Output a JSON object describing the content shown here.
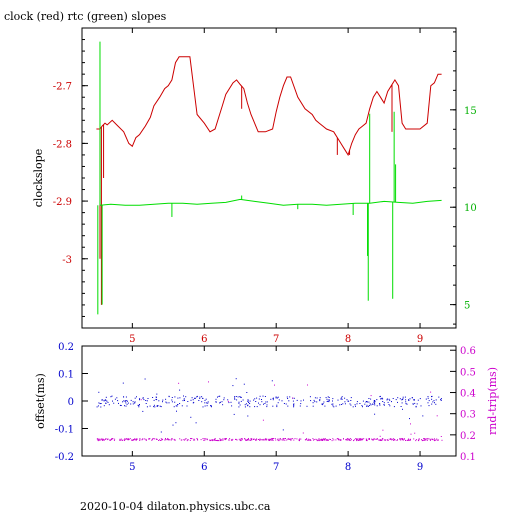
{
  "chart_data": [
    {
      "type": "line",
      "title": "clock (red) rtc (green) slopes",
      "xlabel": "",
      "ylabel": "clockslope",
      "y2label": "",
      "xlim": [
        4.3,
        9.5
      ],
      "ylim": [
        -3.12,
        -2.6
      ],
      "y2lim": [
        3.8,
        19.2
      ],
      "x_ticks": [
        "5",
        "6",
        "7",
        "8",
        "9"
      ],
      "y_ticks": [
        "-2.7",
        "-2.8",
        "-2.9",
        "-3"
      ],
      "y2_ticks": [
        "15",
        "10",
        "5"
      ],
      "grid": false,
      "colors": {
        "clock": "#cc0000",
        "rtc": "#00dd00",
        "axis_left": "#cc0000",
        "axis_right": "#00b000",
        "frame": "#000000"
      },
      "series": [
        {
          "axis": "left",
          "color": "#cc0000",
          "x": [
            4.5,
            4.55,
            4.58,
            4.62,
            4.65,
            4.72,
            4.8,
            4.88,
            4.95,
            5.0,
            5.05,
            5.1,
            5.18,
            5.25,
            5.3,
            5.38,
            5.45,
            5.5,
            5.55,
            5.6,
            5.65,
            5.72,
            5.8,
            5.9,
            6.0,
            6.08,
            6.15,
            6.2,
            6.25,
            6.3,
            6.4,
            6.45,
            6.5,
            6.55,
            6.6,
            6.65,
            6.75,
            6.85,
            6.95,
            7.0,
            7.05,
            7.1,
            7.15,
            7.2,
            7.3,
            7.4,
            7.5,
            7.55,
            7.6,
            7.7,
            7.8,
            7.9,
            7.95,
            8.0,
            8.05,
            8.1,
            8.15,
            8.2,
            8.25,
            8.3,
            8.35,
            8.4,
            8.45,
            8.5,
            8.55,
            8.6,
            8.65,
            8.7,
            8.75,
            8.8,
            8.9,
            9.0,
            9.1,
            9.15,
            9.2,
            9.25,
            9.3
          ],
          "y": [
            -2.775,
            -2.775,
            -2.77,
            -2.765,
            -2.768,
            -2.76,
            -2.77,
            -2.78,
            -2.8,
            -2.805,
            -2.79,
            -2.785,
            -2.77,
            -2.755,
            -2.735,
            -2.72,
            -2.705,
            -2.7,
            -2.69,
            -2.66,
            -2.65,
            -2.65,
            -2.65,
            -2.75,
            -2.765,
            -2.78,
            -2.775,
            -2.755,
            -2.735,
            -2.715,
            -2.695,
            -2.69,
            -2.698,
            -2.705,
            -2.73,
            -2.75,
            -2.78,
            -2.78,
            -2.775,
            -2.745,
            -2.72,
            -2.7,
            -2.685,
            -2.685,
            -2.72,
            -2.74,
            -2.75,
            -2.76,
            -2.765,
            -2.775,
            -2.78,
            -2.8,
            -2.81,
            -2.82,
            -2.8,
            -2.785,
            -2.775,
            -2.77,
            -2.765,
            -2.74,
            -2.72,
            -2.71,
            -2.72,
            -2.73,
            -2.71,
            -2.7,
            -2.69,
            -2.7,
            -2.765,
            -2.775,
            -2.775,
            -2.775,
            -2.765,
            -2.7,
            -2.695,
            -2.68,
            -2.68
          ],
          "spikes": [
            [
              4.55,
              -3.0
            ],
            [
              4.57,
              -3.08
            ],
            [
              4.6,
              -2.86
            ],
            [
              6.52,
              -2.74
            ],
            [
              7.85,
              -2.82
            ],
            [
              8.02,
              -2.82
            ],
            [
              8.61,
              -2.78
            ]
          ]
        },
        {
          "axis": "right",
          "color": "#00dd00",
          "x": [
            4.55,
            4.7,
            4.9,
            5.1,
            5.3,
            5.5,
            5.7,
            5.9,
            6.1,
            6.3,
            6.5,
            6.7,
            6.9,
            7.1,
            7.3,
            7.5,
            7.7,
            7.9,
            8.1,
            8.3,
            8.5,
            8.7,
            8.9,
            9.1,
            9.3
          ],
          "y": [
            10.1,
            10.15,
            10.1,
            10.1,
            10.15,
            10.2,
            10.2,
            10.15,
            10.2,
            10.25,
            10.4,
            10.3,
            10.2,
            10.1,
            10.15,
            10.15,
            10.1,
            10.15,
            10.2,
            10.2,
            10.3,
            10.25,
            10.2,
            10.3,
            10.35
          ],
          "spikes": [
            [
              4.52,
              4.5
            ],
            [
              4.55,
              18.5
            ],
            [
              4.58,
              5.0
            ],
            [
              5.55,
              9.5
            ],
            [
              6.52,
              10.6
            ],
            [
              7.3,
              9.9
            ],
            [
              8.07,
              9.6
            ],
            [
              8.27,
              7.5
            ],
            [
              8.28,
              5.2
            ],
            [
              8.3,
              14.8
            ],
            [
              8.62,
              5.3
            ],
            [
              8.64,
              14.9
            ],
            [
              8.66,
              12.2
            ]
          ]
        }
      ]
    },
    {
      "type": "scatter",
      "xlabel": "",
      "ylabel": "offset(ms)",
      "y2label": "rnd-trip(ms)",
      "xlim": [
        4.3,
        9.5
      ],
      "ylim": [
        -0.2,
        0.2
      ],
      "y2lim": [
        0.1,
        0.62
      ],
      "x_ticks": [
        "5",
        "6",
        "7",
        "8",
        "9"
      ],
      "y_ticks": [
        "0.2",
        "0.1",
        "0",
        "-0.1",
        "-0.2"
      ],
      "y2_ticks": [
        "0.6",
        "0.5",
        "0.4",
        "0.3",
        "0.2",
        "0.1"
      ],
      "grid": false,
      "colors": {
        "offset": "#0000cc",
        "rndtrip": "#cc00cc"
      },
      "series": [
        {
          "axis": "left",
          "color": "#0000cc",
          "x_range": [
            4.5,
            9.3
          ],
          "center": 0.0,
          "spread": 0.02
        },
        {
          "axis": "right",
          "color": "#cc00cc",
          "x_range": [
            4.5,
            9.3
          ],
          "center": 0.18,
          "spread": 0.005
        }
      ]
    }
  ],
  "footer": "2020-10-04  dilaton.physics.ubc.ca"
}
